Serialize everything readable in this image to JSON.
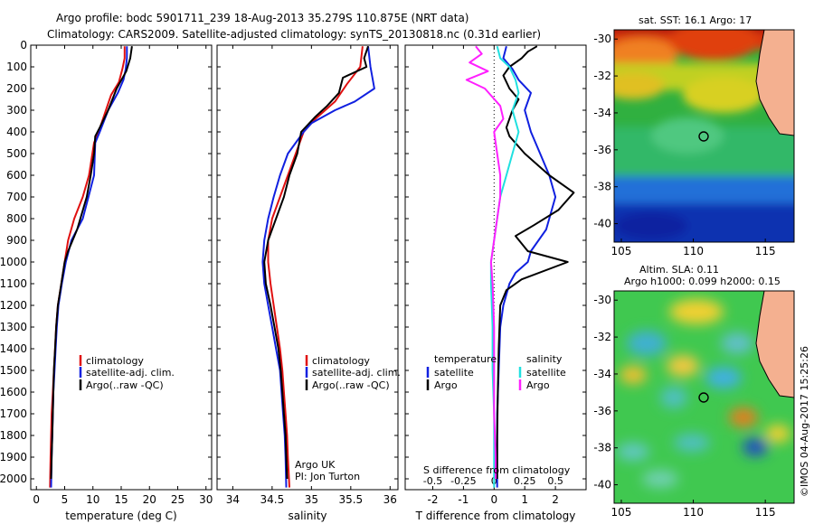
{
  "figure": {
    "title_line1": "Argo profile: bodc 5901711_239 18-Aug-2013 35.279S 110.875E (NRT data)",
    "title_line2": "Climatology: CARS2009. Satellite-adjusted climatology: synTS_20130818.nc (0.31d earlier)",
    "credit": "©IMOS 04-Aug-2017 15:25:26"
  },
  "colors": {
    "climatology": "#e01010",
    "satellite": "#1020e0",
    "argo": "#000000",
    "cyan": "#20e0e0",
    "magenta": "#ff20ff"
  },
  "chart_data": [
    {
      "id": "temperature",
      "type": "line",
      "xlabel": "temperature (deg C)",
      "ylabel": "",
      "xlim": [
        -1,
        31
      ],
      "xticks": [
        0,
        5,
        10,
        15,
        20,
        25,
        30
      ],
      "ylim": [
        2050,
        0
      ],
      "yticks": [
        0,
        100,
        200,
        300,
        400,
        500,
        600,
        700,
        800,
        900,
        1000,
        1100,
        1200,
        1300,
        1400,
        1500,
        1600,
        1700,
        1800,
        1900,
        2000
      ],
      "legend": [
        "climatology",
        "satellite-adj. clim.",
        "Argo(..raw -QC)"
      ],
      "series": [
        {
          "name": "climatology",
          "color_key": "climatology",
          "points": [
            [
              15.6,
              5
            ],
            [
              15.6,
              60
            ],
            [
              15.2,
              110
            ],
            [
              14.6,
              170
            ],
            [
              13.2,
              230
            ],
            [
              12.3,
              300
            ],
            [
              11,
              400
            ],
            [
              10.2,
              450
            ],
            [
              9.3,
              600
            ],
            [
              8.2,
              700
            ],
            [
              6.7,
              800
            ],
            [
              5.6,
              900
            ],
            [
              5,
              1000
            ],
            [
              4.4,
              1100
            ],
            [
              3.8,
              1200
            ],
            [
              3.5,
              1300
            ],
            [
              3.3,
              1400
            ],
            [
              3.1,
              1500
            ],
            [
              2.9,
              1600
            ],
            [
              2.7,
              1700
            ],
            [
              2.6,
              1800
            ],
            [
              2.5,
              1900
            ],
            [
              2.4,
              2040
            ]
          ]
        },
        {
          "name": "satellite-adj. clim.",
          "color_key": "satellite",
          "points": [
            [
              16,
              5
            ],
            [
              16,
              60
            ],
            [
              15.8,
              110
            ],
            [
              15.4,
              160
            ],
            [
              14.4,
              220
            ],
            [
              12.7,
              300
            ],
            [
              11.2,
              400
            ],
            [
              10.4,
              450
            ],
            [
              10.2,
              600
            ],
            [
              9.2,
              700
            ],
            [
              8.2,
              800
            ],
            [
              6.2,
              900
            ],
            [
              5.2,
              1000
            ],
            [
              4.5,
              1100
            ],
            [
              3.9,
              1200
            ],
            [
              3.6,
              1300
            ],
            [
              3.4,
              1400
            ],
            [
              3.2,
              1500
            ],
            [
              3,
              1600
            ],
            [
              2.9,
              1700
            ],
            [
              2.8,
              1800
            ],
            [
              2.7,
              1900
            ],
            [
              2.6,
              2040
            ]
          ]
        },
        {
          "name": "Argo(..raw -QC)",
          "color_key": "argo",
          "points": [
            [
              16.9,
              5
            ],
            [
              16.6,
              60
            ],
            [
              15.9,
              120
            ],
            [
              14.2,
              200
            ],
            [
              12.7,
              300
            ],
            [
              11.2,
              380
            ],
            [
              10.4,
              420
            ],
            [
              10.2,
              500
            ],
            [
              9.6,
              600
            ],
            [
              8.9,
              700
            ],
            [
              7.2,
              850
            ],
            [
              5.6,
              950
            ],
            [
              5,
              1000
            ],
            [
              4.4,
              1100
            ],
            [
              3.8,
              1200
            ],
            [
              3.5,
              1300
            ],
            [
              3.3,
              1400
            ],
            [
              3.1,
              1500
            ],
            [
              3,
              1600
            ],
            [
              2.9,
              1700
            ],
            [
              2.8,
              1800
            ],
            [
              2.7,
              1900
            ],
            [
              2.6,
              2000
            ]
          ]
        }
      ]
    },
    {
      "id": "salinity",
      "type": "line",
      "xlabel": "salinity",
      "ylabel": "",
      "xlim": [
        33.8,
        36.1
      ],
      "xticks": [
        34,
        34.5,
        35,
        35.5,
        36
      ],
      "ylim": [
        2050,
        0
      ],
      "legend": [
        "climatology",
        "satellite-adj. clim.",
        "Argo(..raw -QC)"
      ],
      "annotation": [
        "Argo UK",
        "PI: Jon Turton"
      ],
      "series": [
        {
          "name": "climatology",
          "color_key": "climatology",
          "points": [
            [
              35.65,
              5
            ],
            [
              35.62,
              100
            ],
            [
              35.45,
              180
            ],
            [
              35.3,
              260
            ],
            [
              35.05,
              340
            ],
            [
              34.9,
              400
            ],
            [
              34.8,
              500
            ],
            [
              34.7,
              600
            ],
            [
              34.6,
              700
            ],
            [
              34.5,
              800
            ],
            [
              34.45,
              900
            ],
            [
              34.45,
              1000
            ],
            [
              34.48,
              1100
            ],
            [
              34.52,
              1200
            ],
            [
              34.56,
              1300
            ],
            [
              34.6,
              1400
            ],
            [
              34.63,
              1500
            ],
            [
              34.65,
              1600
            ],
            [
              34.67,
              1700
            ],
            [
              34.69,
              1800
            ],
            [
              34.7,
              1900
            ],
            [
              34.72,
              2040
            ]
          ]
        },
        {
          "name": "satellite-adj. clim.",
          "color_key": "satellite",
          "points": [
            [
              35.72,
              5
            ],
            [
              35.75,
              100
            ],
            [
              35.8,
              200
            ],
            [
              35.55,
              260
            ],
            [
              35.3,
              300
            ],
            [
              35,
              360
            ],
            [
              34.9,
              400
            ],
            [
              34.7,
              500
            ],
            [
              34.6,
              600
            ],
            [
              34.52,
              700
            ],
            [
              34.45,
              800
            ],
            [
              34.4,
              900
            ],
            [
              34.38,
              1000
            ],
            [
              34.4,
              1100
            ],
            [
              34.45,
              1200
            ],
            [
              34.5,
              1300
            ],
            [
              34.55,
              1400
            ],
            [
              34.6,
              1500
            ],
            [
              34.62,
              1600
            ],
            [
              34.64,
              1700
            ],
            [
              34.66,
              1800
            ],
            [
              34.67,
              1900
            ],
            [
              34.68,
              2040
            ]
          ]
        },
        {
          "name": "Argo(..raw -QC)",
          "color_key": "argo",
          "points": [
            [
              35.72,
              5
            ],
            [
              35.67,
              60
            ],
            [
              35.7,
              100
            ],
            [
              35.4,
              150
            ],
            [
              35.35,
              220
            ],
            [
              35.2,
              280
            ],
            [
              35.05,
              330
            ],
            [
              34.87,
              400
            ],
            [
              34.82,
              500
            ],
            [
              34.72,
              600
            ],
            [
              34.65,
              700
            ],
            [
              34.55,
              800
            ],
            [
              34.45,
              900
            ],
            [
              34.4,
              1000
            ],
            [
              34.42,
              1100
            ],
            [
              34.48,
              1200
            ],
            [
              34.53,
              1300
            ],
            [
              34.58,
              1400
            ],
            [
              34.61,
              1500
            ],
            [
              34.63,
              1600
            ],
            [
              34.65,
              1700
            ],
            [
              34.67,
              1800
            ],
            [
              34.68,
              1900
            ],
            [
              34.69,
              2000
            ]
          ]
        }
      ]
    },
    {
      "id": "difference",
      "type": "line",
      "xlabel": "T difference from climatology",
      "xlabel_top": "S difference from climatology",
      "ylabel": "",
      "xlim": [
        -2.9,
        3
      ],
      "xticks": [
        -2,
        -1,
        0,
        1,
        2
      ],
      "sticks": [
        -0.5,
        -0.25,
        0,
        0.25,
        0.5
      ],
      "ylim": [
        2050,
        0
      ],
      "legend_headers": [
        "temperature",
        "salinity"
      ],
      "legend_left": [
        "satellite",
        "Argo"
      ],
      "legend_right": [
        "satellite",
        "Argo"
      ],
      "series": [
        {
          "name": "temperature satellite",
          "color_key": "satellite",
          "points": [
            [
              0.4,
              5
            ],
            [
              0.3,
              60
            ],
            [
              0.6,
              110
            ],
            [
              0.8,
              160
            ],
            [
              1.2,
              220
            ],
            [
              1,
              300
            ],
            [
              1.2,
              400
            ],
            [
              1.5,
              500
            ],
            [
              1.8,
              600
            ],
            [
              2,
              700
            ],
            [
              1.7,
              850
            ],
            [
              1.2,
              950
            ],
            [
              1.1,
              1000
            ],
            [
              0.7,
              1050
            ],
            [
              0.5,
              1100
            ],
            [
              0.3,
              1200
            ],
            [
              0.2,
              1300
            ],
            [
              0.15,
              1500
            ],
            [
              0.1,
              1700
            ],
            [
              0.1,
              1900
            ],
            [
              0.1,
              2040
            ]
          ]
        },
        {
          "name": "temperature Argo",
          "color_key": "argo",
          "points": [
            [
              1.4,
              5
            ],
            [
              1.1,
              30
            ],
            [
              0.9,
              60
            ],
            [
              0.5,
              100
            ],
            [
              0.3,
              140
            ],
            [
              0.5,
              200
            ],
            [
              0.8,
              250
            ],
            [
              0.6,
              300
            ],
            [
              0.4,
              380
            ],
            [
              0.5,
              420
            ],
            [
              1,
              500
            ],
            [
              1.8,
              600
            ],
            [
              2.6,
              680
            ],
            [
              2.1,
              760
            ],
            [
              1.3,
              830
            ],
            [
              0.7,
              880
            ],
            [
              1.1,
              950
            ],
            [
              2.4,
              1000
            ],
            [
              0.9,
              1080
            ],
            [
              0.4,
              1130
            ],
            [
              0.2,
              1200
            ],
            [
              0.15,
              1400
            ],
            [
              0.12,
              1600
            ],
            [
              0.1,
              1800
            ],
            [
              0.1,
              2000
            ]
          ]
        },
        {
          "name": "salinity satellite",
          "color_key": "cyan",
          "points": [
            [
              0.1,
              5
            ],
            [
              0.2,
              60
            ],
            [
              0.5,
              100
            ],
            [
              0.7,
              160
            ],
            [
              0.8,
              220
            ],
            [
              0.6,
              300
            ],
            [
              0.8,
              400
            ],
            [
              0.6,
              500
            ],
            [
              0.4,
              600
            ],
            [
              0.2,
              700
            ],
            [
              0.1,
              800
            ],
            [
              0,
              900
            ],
            [
              -0.1,
              1000
            ],
            [
              -0.1,
              1100
            ],
            [
              -0.05,
              1300
            ],
            [
              -0.05,
              1500
            ],
            [
              0,
              1700
            ],
            [
              0,
              1900
            ],
            [
              0,
              2040
            ]
          ]
        },
        {
          "name": "salinity Argo",
          "color_key": "magenta",
          "points": [
            [
              -0.6,
              5
            ],
            [
              -0.4,
              40
            ],
            [
              -0.8,
              80
            ],
            [
              -0.2,
              120
            ],
            [
              -0.9,
              160
            ],
            [
              -0.3,
              200
            ],
            [
              0.2,
              280
            ],
            [
              0.3,
              340
            ],
            [
              0,
              400
            ],
            [
              0.1,
              500
            ],
            [
              0.2,
              600
            ],
            [
              0.2,
              700
            ],
            [
              0.1,
              800
            ],
            [
              0,
              900
            ],
            [
              -0.1,
              1000
            ],
            [
              -0.05,
              1100
            ],
            [
              0,
              1300
            ],
            [
              0,
              1500
            ],
            [
              0,
              1700
            ],
            [
              0.05,
              1900
            ],
            [
              0.05,
              2000
            ]
          ]
        }
      ]
    },
    {
      "id": "sst_map",
      "type": "heatmap",
      "title": "sat. SST: 16.1  Argo: 17",
      "xlim": [
        104.5,
        117
      ],
      "xticks": [
        105,
        110,
        115
      ],
      "ylim": [
        -41,
        -29.5
      ],
      "yticks": [
        -30,
        -32,
        -34,
        -36,
        -38,
        -40
      ],
      "marker": [
        110.875,
        -35.279
      ]
    },
    {
      "id": "sla_map",
      "type": "heatmap",
      "title_line1": "Altim. SLA: 0.11",
      "title_line2": "Argo h1000: 0.099 h2000: 0.15",
      "xlim": [
        104.5,
        117
      ],
      "xticks": [
        105,
        110,
        115
      ],
      "ylim": [
        -41,
        -29.5
      ],
      "yticks": [
        -30,
        -32,
        -34,
        -36,
        -38,
        -40
      ],
      "marker": [
        110.875,
        -35.279
      ]
    }
  ]
}
